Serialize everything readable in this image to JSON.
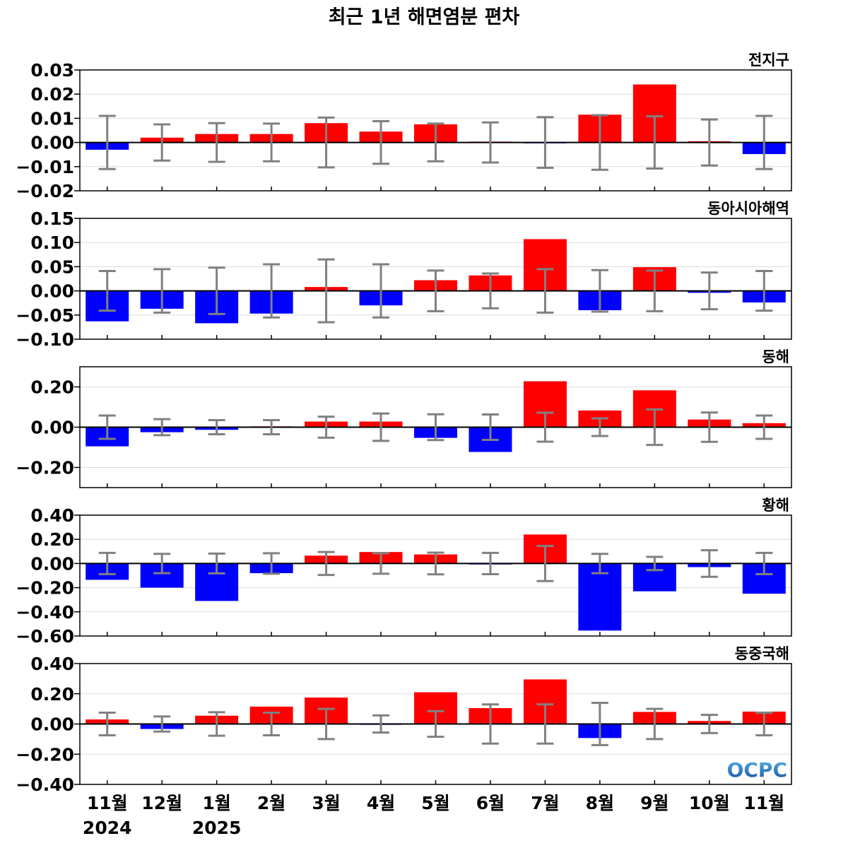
{
  "title": "최근 1년 해면염분 편차",
  "logo_text": "OCPC",
  "colors": {
    "positive": "#ff0000",
    "negative": "#0000ff",
    "errorbar": "#808080",
    "grid": "#dcdcdc",
    "logo_top": "#5ab4e6",
    "logo_bottom": "#1a4fa0"
  },
  "months": [
    "11월",
    "12월",
    "1월",
    "2월",
    "3월",
    "4월",
    "5월",
    "6월",
    "7월",
    "8월",
    "9월",
    "10월",
    "11월"
  ],
  "year_labels": [
    {
      "index": 0,
      "label": "2024"
    },
    {
      "index": 2,
      "label": "2025"
    }
  ],
  "chart_data": [
    {
      "type": "bar",
      "region": "전지구",
      "ylim": [
        -0.02,
        0.03
      ],
      "yticks": [
        0.03,
        0.02,
        0.01,
        0.0,
        -0.01,
        -0.02
      ],
      "tick_labels": [
        "0.03",
        "0.02",
        "0.01",
        "0.00",
        "−0.01",
        "−0.02"
      ],
      "values": [
        -0.003,
        0.002,
        0.0035,
        0.0035,
        0.008,
        0.0045,
        0.0075,
        0.0003,
        -0.0003,
        0.0115,
        0.024,
        0.0005,
        -0.0048
      ],
      "error_range": [
        0.011,
        0.0075,
        0.008,
        0.0078,
        0.0103,
        0.0088,
        0.0078,
        0.0083,
        0.0105,
        0.0113,
        0.0108,
        0.0095,
        0.011
      ],
      "grid": true
    },
    {
      "type": "bar",
      "region": "동아시아해역",
      "ylim": [
        -0.1,
        0.15
      ],
      "yticks": [
        0.15,
        0.1,
        0.05,
        0.0,
        -0.05,
        -0.1
      ],
      "tick_labels": [
        "0.15",
        "0.10",
        "0.05",
        "0.00",
        "−0.05",
        "−0.10"
      ],
      "values": [
        -0.063,
        -0.037,
        -0.067,
        -0.047,
        0.008,
        -0.03,
        0.022,
        0.032,
        0.107,
        -0.04,
        0.049,
        -0.004,
        -0.024
      ],
      "error_range": [
        0.041,
        0.045,
        0.048,
        0.055,
        0.065,
        0.055,
        0.042,
        0.036,
        0.045,
        0.043,
        0.042,
        0.038,
        0.041
      ],
      "grid": true
    },
    {
      "type": "bar",
      "region": "동해",
      "ylim": [
        -0.3,
        0.3
      ],
      "yticks": [
        0.2,
        0.0,
        -0.2
      ],
      "tick_labels": [
        "0.20",
        "0.00",
        "−0.20"
      ],
      "values": [
        -0.095,
        -0.025,
        -0.013,
        0.003,
        0.028,
        0.028,
        -0.053,
        -0.123,
        0.228,
        0.083,
        0.183,
        0.038,
        0.02
      ],
      "error_range": [
        0.058,
        0.04,
        0.035,
        0.035,
        0.052,
        0.068,
        0.064,
        0.063,
        0.072,
        0.044,
        0.088,
        0.073,
        0.058
      ],
      "grid": true
    },
    {
      "type": "bar",
      "region": "황해",
      "ylim": [
        -0.6,
        0.4
      ],
      "yticks": [
        0.4,
        0.2,
        0.0,
        -0.2,
        -0.4,
        -0.6
      ],
      "tick_labels": [
        "0.40",
        "0.20",
        "0.00",
        "−0.20",
        "−0.40",
        "−0.60"
      ],
      "values": [
        -0.135,
        -0.2,
        -0.31,
        -0.08,
        0.065,
        0.095,
        0.075,
        -0.008,
        0.24,
        -0.555,
        -0.23,
        -0.03,
        -0.25
      ],
      "error_range": [
        0.088,
        0.08,
        0.082,
        0.085,
        0.095,
        0.085,
        0.09,
        0.088,
        0.145,
        0.08,
        0.055,
        0.11,
        0.088
      ],
      "grid": true
    },
    {
      "type": "bar",
      "region": "동중국해",
      "ylim": [
        -0.4,
        0.4
      ],
      "yticks": [
        0.4,
        0.2,
        0.0,
        -0.2,
        -0.4
      ],
      "tick_labels": [
        "0.40",
        "0.20",
        "0.00",
        "−0.20",
        "−0.40"
      ],
      "values": [
        0.03,
        -0.033,
        0.055,
        0.115,
        0.175,
        -0.003,
        0.21,
        0.105,
        0.295,
        -0.093,
        0.08,
        0.02,
        0.082
      ],
      "error_range": [
        0.075,
        0.05,
        0.078,
        0.075,
        0.1,
        0.057,
        0.085,
        0.13,
        0.13,
        0.14,
        0.1,
        0.06,
        0.075
      ],
      "grid": true
    }
  ]
}
